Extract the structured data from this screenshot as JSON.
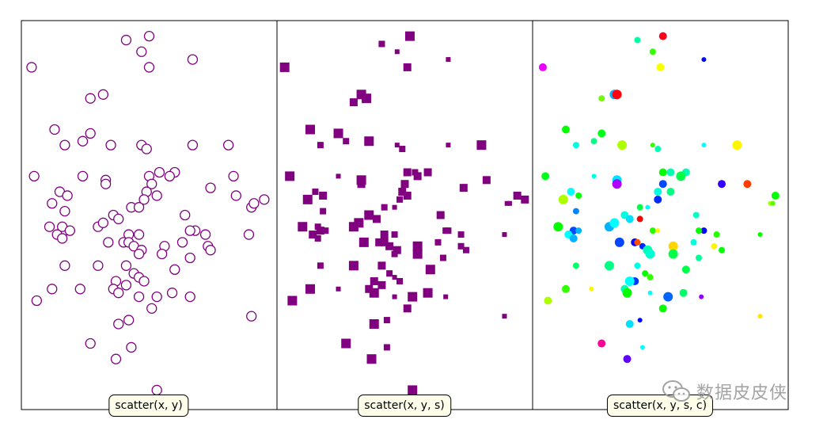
{
  "chart_data": [
    {
      "type": "scatter",
      "title": "scatter(x, y)",
      "xlim": [
        0,
        1
      ],
      "ylim": [
        0,
        1
      ],
      "marker": "circle-hollow",
      "edge_color": "#800080",
      "points": [
        [
          0.04,
          0.88
        ],
        [
          0.41,
          0.95
        ],
        [
          0.5,
          0.96
        ],
        [
          0.47,
          0.92
        ],
        [
          0.5,
          0.88
        ],
        [
          0.67,
          0.9
        ],
        [
          0.27,
          0.8
        ],
        [
          0.32,
          0.81
        ],
        [
          0.13,
          0.72
        ],
        [
          0.17,
          0.68
        ],
        [
          0.24,
          0.69
        ],
        [
          0.27,
          0.71
        ],
        [
          0.35,
          0.68
        ],
        [
          0.47,
          0.68
        ],
        [
          0.49,
          0.67
        ],
        [
          0.67,
          0.68
        ],
        [
          0.81,
          0.68
        ],
        [
          0.05,
          0.6
        ],
        [
          0.24,
          0.6
        ],
        [
          0.33,
          0.59
        ],
        [
          0.33,
          0.58
        ],
        [
          0.5,
          0.6
        ],
        [
          0.54,
          0.61
        ],
        [
          0.6,
          0.61
        ],
        [
          0.58,
          0.6
        ],
        [
          0.51,
          0.58
        ],
        [
          0.74,
          0.57
        ],
        [
          0.83,
          0.6
        ],
        [
          0.15,
          0.56
        ],
        [
          0.18,
          0.55
        ],
        [
          0.12,
          0.53
        ],
        [
          0.17,
          0.51
        ],
        [
          0.49,
          0.56
        ],
        [
          0.53,
          0.55
        ],
        [
          0.84,
          0.55
        ],
        [
          0.48,
          0.54
        ],
        [
          0.43,
          0.52
        ],
        [
          0.46,
          0.52
        ],
        [
          0.36,
          0.5
        ],
        [
          0.38,
          0.49
        ],
        [
          0.64,
          0.5
        ],
        [
          0.9,
          0.52
        ],
        [
          0.91,
          0.53
        ],
        [
          0.95,
          0.54
        ],
        [
          0.11,
          0.47
        ],
        [
          0.17,
          0.46
        ],
        [
          0.16,
          0.47
        ],
        [
          0.19,
          0.46
        ],
        [
          0.14,
          0.45
        ],
        [
          0.16,
          0.44
        ],
        [
          0.3,
          0.47
        ],
        [
          0.32,
          0.48
        ],
        [
          0.42,
          0.45
        ],
        [
          0.46,
          0.45
        ],
        [
          0.68,
          0.46
        ],
        [
          0.66,
          0.46
        ],
        [
          0.72,
          0.45
        ],
        [
          0.89,
          0.45
        ],
        [
          0.34,
          0.43
        ],
        [
          0.4,
          0.43
        ],
        [
          0.42,
          0.43
        ],
        [
          0.44,
          0.42
        ],
        [
          0.47,
          0.41
        ],
        [
          0.56,
          0.42
        ],
        [
          0.63,
          0.43
        ],
        [
          0.73,
          0.42
        ],
        [
          0.74,
          0.41
        ],
        [
          0.46,
          0.4
        ],
        [
          0.55,
          0.4
        ],
        [
          0.66,
          0.39
        ],
        [
          0.17,
          0.37
        ],
        [
          0.3,
          0.37
        ],
        [
          0.41,
          0.37
        ],
        [
          0.44,
          0.35
        ],
        [
          0.46,
          0.34
        ],
        [
          0.48,
          0.33
        ],
        [
          0.6,
          0.36
        ],
        [
          0.41,
          0.32
        ],
        [
          0.37,
          0.33
        ],
        [
          0.36,
          0.31
        ],
        [
          0.12,
          0.31
        ],
        [
          0.23,
          0.31
        ],
        [
          0.38,
          0.3
        ],
        [
          0.46,
          0.29
        ],
        [
          0.53,
          0.29
        ],
        [
          0.59,
          0.3
        ],
        [
          0.66,
          0.29
        ],
        [
          0.06,
          0.28
        ],
        [
          0.51,
          0.26
        ],
        [
          0.9,
          0.24
        ],
        [
          0.38,
          0.22
        ],
        [
          0.42,
          0.23
        ],
        [
          0.27,
          0.17
        ],
        [
          0.43,
          0.16
        ],
        [
          0.37,
          0.13
        ],
        [
          0.53,
          0.05
        ]
      ]
    },
    {
      "type": "scatter",
      "title": "scatter(x, y, s)",
      "xlim": [
        0,
        1
      ],
      "ylim": [
        0,
        1
      ],
      "marker": "square-filled",
      "color": "#800080",
      "points": [
        [
          0.41,
          0.94,
          4
        ],
        [
          0.52,
          0.96,
          6
        ],
        [
          0.47,
          0.92,
          3
        ],
        [
          0.67,
          0.9,
          3
        ],
        [
          0.03,
          0.88,
          6
        ],
        [
          0.51,
          0.88,
          5
        ],
        [
          0.33,
          0.81,
          6
        ],
        [
          0.3,
          0.79,
          5
        ],
        [
          0.35,
          0.8,
          6
        ],
        [
          0.13,
          0.72,
          6
        ],
        [
          0.17,
          0.68,
          4
        ],
        [
          0.24,
          0.71,
          6
        ],
        [
          0.27,
          0.69,
          4
        ],
        [
          0.36,
          0.69,
          6
        ],
        [
          0.47,
          0.68,
          3
        ],
        [
          0.49,
          0.67,
          4
        ],
        [
          0.67,
          0.68,
          3
        ],
        [
          0.8,
          0.68,
          6
        ],
        [
          0.05,
          0.6,
          6
        ],
        [
          0.24,
          0.6,
          3
        ],
        [
          0.33,
          0.59,
          6
        ],
        [
          0.33,
          0.58,
          5
        ],
        [
          0.51,
          0.61,
          5
        ],
        [
          0.54,
          0.61,
          4
        ],
        [
          0.59,
          0.61,
          5
        ],
        [
          0.55,
          0.6,
          5
        ],
        [
          0.5,
          0.58,
          5
        ],
        [
          0.73,
          0.57,
          5
        ],
        [
          0.82,
          0.59,
          5
        ],
        [
          0.15,
          0.56,
          4
        ],
        [
          0.18,
          0.55,
          5
        ],
        [
          0.12,
          0.54,
          6
        ],
        [
          0.18,
          0.51,
          4
        ],
        [
          0.49,
          0.56,
          5
        ],
        [
          0.51,
          0.55,
          5
        ],
        [
          0.94,
          0.55,
          5
        ],
        [
          0.48,
          0.54,
          4
        ],
        [
          0.42,
          0.52,
          4
        ],
        [
          0.46,
          0.52,
          3
        ],
        [
          0.36,
          0.5,
          6
        ],
        [
          0.39,
          0.49,
          5
        ],
        [
          0.64,
          0.5,
          5
        ],
        [
          0.9,
          0.53,
          3
        ],
        [
          0.91,
          0.53,
          3
        ],
        [
          0.97,
          0.54,
          5
        ],
        [
          0.1,
          0.47,
          6
        ],
        [
          0.17,
          0.46,
          5
        ],
        [
          0.16,
          0.47,
          4
        ],
        [
          0.19,
          0.46,
          4
        ],
        [
          0.14,
          0.45,
          5
        ],
        [
          0.16,
          0.44,
          4
        ],
        [
          0.3,
          0.47,
          6
        ],
        [
          0.32,
          0.48,
          6
        ],
        [
          0.42,
          0.45,
          5
        ],
        [
          0.46,
          0.45,
          4
        ],
        [
          0.67,
          0.46,
          4
        ],
        [
          0.66,
          0.46,
          4
        ],
        [
          0.72,
          0.45,
          4
        ],
        [
          0.89,
          0.45,
          3
        ],
        [
          0.34,
          0.43,
          6
        ],
        [
          0.4,
          0.43,
          5
        ],
        [
          0.42,
          0.43,
          5
        ],
        [
          0.44,
          0.42,
          5
        ],
        [
          0.47,
          0.41,
          5
        ],
        [
          0.55,
          0.42,
          6
        ],
        [
          0.63,
          0.43,
          4
        ],
        [
          0.72,
          0.42,
          4
        ],
        [
          0.74,
          0.41,
          4
        ],
        [
          0.46,
          0.4,
          4
        ],
        [
          0.55,
          0.4,
          6
        ],
        [
          0.65,
          0.39,
          4
        ],
        [
          0.17,
          0.37,
          4
        ],
        [
          0.3,
          0.37,
          6
        ],
        [
          0.41,
          0.37,
          5
        ],
        [
          0.44,
          0.35,
          4
        ],
        [
          0.46,
          0.34,
          3
        ],
        [
          0.48,
          0.33,
          4
        ],
        [
          0.6,
          0.36,
          6
        ],
        [
          0.41,
          0.32,
          5
        ],
        [
          0.38,
          0.33,
          5
        ],
        [
          0.36,
          0.31,
          5
        ],
        [
          0.13,
          0.31,
          6
        ],
        [
          0.24,
          0.31,
          3
        ],
        [
          0.38,
          0.3,
          6
        ],
        [
          0.46,
          0.29,
          3
        ],
        [
          0.53,
          0.29,
          6
        ],
        [
          0.59,
          0.3,
          6
        ],
        [
          0.66,
          0.29,
          3
        ],
        [
          0.06,
          0.28,
          6
        ],
        [
          0.51,
          0.26,
          5
        ],
        [
          0.89,
          0.24,
          3
        ],
        [
          0.38,
          0.22,
          6
        ],
        [
          0.43,
          0.23,
          4
        ],
        [
          0.27,
          0.17,
          6
        ],
        [
          0.43,
          0.16,
          4
        ],
        [
          0.37,
          0.13,
          6
        ],
        [
          0.53,
          0.05,
          6
        ]
      ]
    },
    {
      "type": "scatter",
      "title": "scatter(x, y, s, c)",
      "xlim": [
        0,
        1
      ],
      "ylim": [
        0,
        1
      ],
      "marker": "circle-filled",
      "colormap": "hsv",
      "points": [
        [
          0.51,
          0.96,
          5,
          0.98
        ],
        [
          0.41,
          0.95,
          4,
          0.44
        ],
        [
          0.47,
          0.92,
          4,
          0.3
        ],
        [
          0.67,
          0.9,
          3,
          0.66
        ],
        [
          0.5,
          0.88,
          5,
          0.17
        ],
        [
          0.04,
          0.88,
          5,
          0.82
        ],
        [
          0.32,
          0.81,
          6,
          0.55
        ],
        [
          0.33,
          0.81,
          6,
          0.99
        ],
        [
          0.27,
          0.8,
          4,
          0.26
        ],
        [
          0.13,
          0.72,
          5,
          0.33
        ],
        [
          0.17,
          0.68,
          4,
          0.48
        ],
        [
          0.24,
          0.69,
          4,
          0.42
        ],
        [
          0.27,
          0.71,
          5,
          0.35
        ],
        [
          0.35,
          0.68,
          6,
          0.22
        ],
        [
          0.47,
          0.68,
          3,
          0.3
        ],
        [
          0.49,
          0.67,
          4,
          0.45
        ],
        [
          0.67,
          0.68,
          3,
          0.5
        ],
        [
          0.8,
          0.68,
          6,
          0.16
        ],
        [
          0.05,
          0.6,
          5,
          0.35
        ],
        [
          0.24,
          0.6,
          3,
          0.48
        ],
        [
          0.33,
          0.59,
          6,
          0.52
        ],
        [
          0.33,
          0.58,
          6,
          0.78
        ],
        [
          0.51,
          0.61,
          5,
          0.33
        ],
        [
          0.54,
          0.61,
          5,
          0.45
        ],
        [
          0.6,
          0.61,
          5,
          0.45
        ],
        [
          0.58,
          0.6,
          6,
          0.38
        ],
        [
          0.51,
          0.58,
          5,
          0.62
        ],
        [
          0.74,
          0.58,
          5,
          0.7
        ],
        [
          0.84,
          0.58,
          5,
          0.04
        ],
        [
          0.15,
          0.56,
          5,
          0.5
        ],
        [
          0.18,
          0.55,
          4,
          0.33
        ],
        [
          0.12,
          0.54,
          6,
          0.22
        ],
        [
          0.49,
          0.56,
          5,
          0.48
        ],
        [
          0.54,
          0.56,
          5,
          0.42
        ],
        [
          0.49,
          0.54,
          5,
          0.64
        ],
        [
          0.42,
          0.52,
          4,
          0.38
        ],
        [
          0.45,
          0.52,
          3,
          0.5
        ],
        [
          0.95,
          0.55,
          5,
          0.33
        ],
        [
          0.93,
          0.53,
          3,
          0.22
        ],
        [
          0.94,
          0.53,
          3,
          0.28
        ],
        [
          0.17,
          0.51,
          4,
          0.58
        ],
        [
          0.36,
          0.5,
          5,
          0.48
        ],
        [
          0.38,
          0.49,
          5,
          0.52
        ],
        [
          0.64,
          0.5,
          4,
          0.46
        ],
        [
          0.42,
          0.49,
          4,
          0.0
        ],
        [
          0.1,
          0.47,
          6,
          0.33
        ],
        [
          0.16,
          0.46,
          5,
          0.62
        ],
        [
          0.18,
          0.46,
          4,
          0.55
        ],
        [
          0.14,
          0.45,
          5,
          0.5
        ],
        [
          0.16,
          0.44,
          5,
          0.55
        ],
        [
          0.3,
          0.47,
          6,
          0.55
        ],
        [
          0.32,
          0.48,
          6,
          0.5
        ],
        [
          0.47,
          0.46,
          4,
          0.31
        ],
        [
          0.49,
          0.46,
          3,
          0.16
        ],
        [
          0.67,
          0.46,
          4,
          0.66
        ],
        [
          0.65,
          0.46,
          4,
          0.33
        ],
        [
          0.72,
          0.45,
          4,
          0.31
        ],
        [
          0.89,
          0.45,
          3,
          0.33
        ],
        [
          0.34,
          0.43,
          6,
          0.62
        ],
        [
          0.4,
          0.43,
          5,
          0.66
        ],
        [
          0.41,
          0.43,
          4,
          0.05
        ],
        [
          0.43,
          0.42,
          4,
          0.64
        ],
        [
          0.45,
          0.41,
          6,
          0.45
        ],
        [
          0.55,
          0.42,
          6,
          0.14
        ],
        [
          0.63,
          0.43,
          4,
          0.48
        ],
        [
          0.71,
          0.42,
          4,
          0.16
        ],
        [
          0.74,
          0.41,
          4,
          0.33
        ],
        [
          0.46,
          0.4,
          6,
          0.47
        ],
        [
          0.55,
          0.4,
          6,
          0.38
        ],
        [
          0.65,
          0.39,
          4,
          0.43
        ],
        [
          0.17,
          0.37,
          4,
          0.4
        ],
        [
          0.3,
          0.37,
          6,
          0.42
        ],
        [
          0.41,
          0.37,
          4,
          0.48
        ],
        [
          0.44,
          0.35,
          4,
          0.33
        ],
        [
          0.46,
          0.34,
          4,
          0.3
        ],
        [
          0.4,
          0.33,
          5,
          0.63
        ],
        [
          0.6,
          0.36,
          5,
          0.38
        ],
        [
          0.38,
          0.33,
          6,
          0.5
        ],
        [
          0.36,
          0.31,
          5,
          0.45
        ],
        [
          0.13,
          0.31,
          5,
          0.3
        ],
        [
          0.23,
          0.31,
          3,
          0.16
        ],
        [
          0.37,
          0.3,
          6,
          0.33
        ],
        [
          0.46,
          0.3,
          3,
          0.5
        ],
        [
          0.53,
          0.29,
          6,
          0.6
        ],
        [
          0.59,
          0.3,
          5,
          0.4
        ],
        [
          0.66,
          0.29,
          3,
          0.76
        ],
        [
          0.06,
          0.28,
          5,
          0.22
        ],
        [
          0.51,
          0.26,
          5,
          0.33
        ],
        [
          0.89,
          0.24,
          3,
          0.15
        ],
        [
          0.38,
          0.22,
          5,
          0.52
        ],
        [
          0.42,
          0.23,
          3,
          0.66
        ],
        [
          0.27,
          0.17,
          5,
          0.9
        ],
        [
          0.43,
          0.16,
          3,
          0.5
        ],
        [
          0.37,
          0.13,
          5,
          0.73
        ]
      ]
    }
  ],
  "watermark": {
    "text": "数据皮皮侠",
    "icon": "wechat-icon"
  }
}
